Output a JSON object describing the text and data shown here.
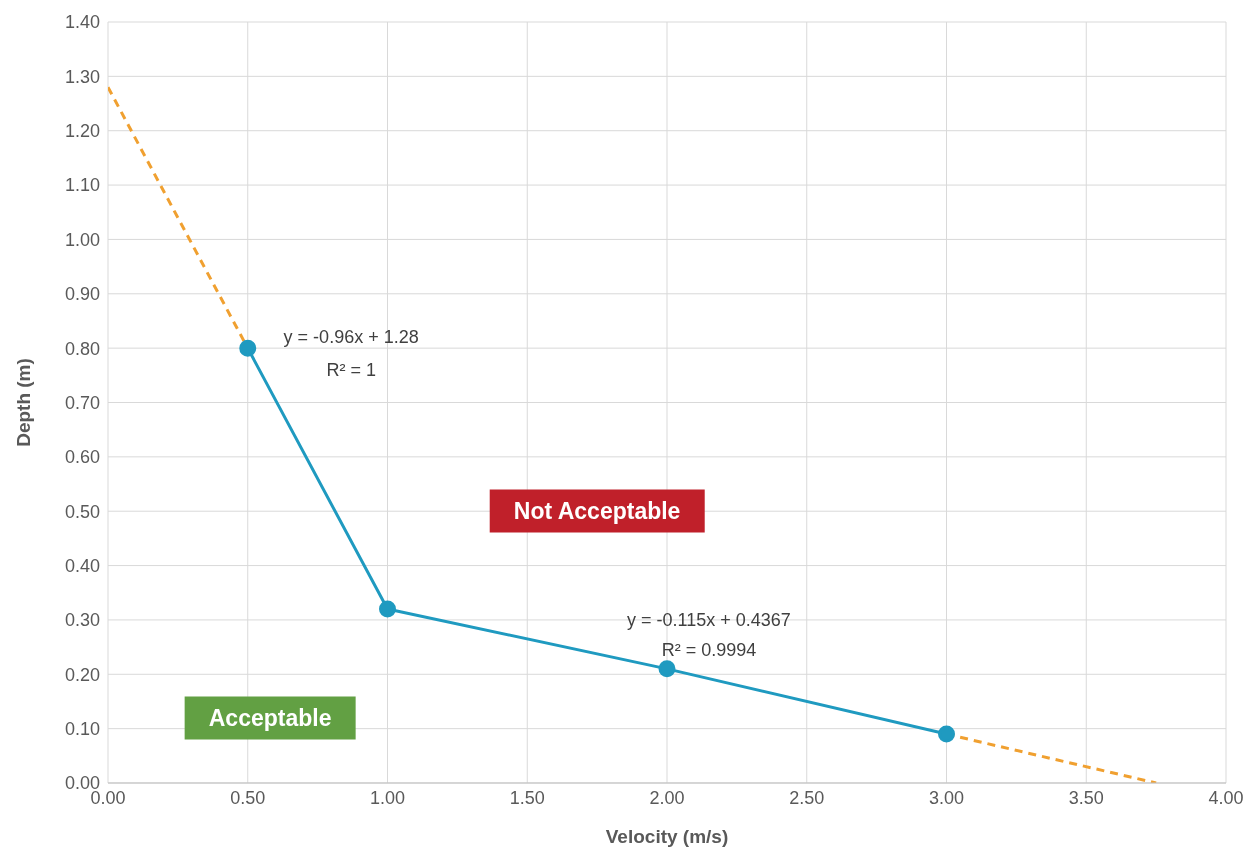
{
  "chart_data": {
    "type": "line",
    "xlabel": "Velocity (m/s)",
    "ylabel": "Depth (m)",
    "xlim": [
      0,
      4
    ],
    "xticks": [
      {
        "value": 0,
        "label": "0.00"
      },
      {
        "value": 0.5,
        "label": "0.50"
      },
      {
        "value": 1,
        "label": "1.00"
      },
      {
        "value": 1.5,
        "label": "1.50"
      },
      {
        "value": 2,
        "label": "2.00"
      },
      {
        "value": 2.5,
        "label": "2.50"
      },
      {
        "value": 3,
        "label": "3.00"
      },
      {
        "value": 3.5,
        "label": "3.50"
      },
      {
        "value": 4,
        "label": "4.00"
      }
    ],
    "ylim": [
      0,
      1.4
    ],
    "yticks": [
      {
        "value": 0,
        "label": "0.00"
      },
      {
        "value": 0.1,
        "label": "0.10"
      },
      {
        "value": 0.2,
        "label": "0.20"
      },
      {
        "value": 0.3,
        "label": "0.30"
      },
      {
        "value": 0.4,
        "label": "0.40"
      },
      {
        "value": 0.5,
        "label": "0.50"
      },
      {
        "value": 0.6,
        "label": "0.60"
      },
      {
        "value": 0.7,
        "label": "0.70"
      },
      {
        "value": 0.8,
        "label": "0.80"
      },
      {
        "value": 0.9,
        "label": "0.90"
      },
      {
        "value": 1.0,
        "label": "1.00"
      },
      {
        "value": 1.1,
        "label": "1.10"
      },
      {
        "value": 1.2,
        "label": "1.20"
      },
      {
        "value": 1.3,
        "label": "1.30"
      },
      {
        "value": 1.4,
        "label": "1.40"
      }
    ],
    "grid": true,
    "series": [
      {
        "color": "#1f9ac0",
        "marker": "circle",
        "line_style": "solid",
        "x": [
          0.5,
          1,
          2,
          3
        ],
        "values": [
          0.8,
          0.32,
          0.21,
          0.09
        ]
      },
      {
        "color": "#f0a030",
        "marker": "none",
        "line_style": "dashed",
        "x": [
          0,
          0.5
        ],
        "values": [
          1.28,
          0.8
        ]
      },
      {
        "color": "#f0a030",
        "marker": "none",
        "line_style": "dashed",
        "x": [
          3,
          3.75
        ],
        "values": [
          0.09,
          0
        ]
      }
    ],
    "annotations": [
      "y = -0.96x + 1.28",
      "R² = 1",
      "y = -0.115x + 0.4367",
      "R² = 0.9994",
      "Not Acceptable",
      "Acceptable"
    ]
  }
}
